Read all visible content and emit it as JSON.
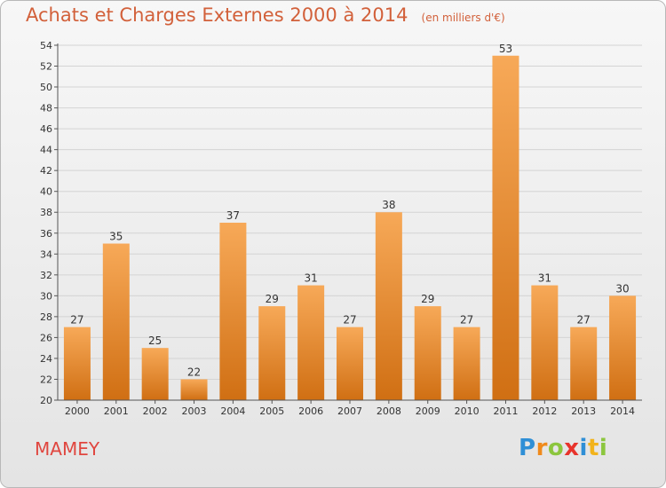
{
  "title": "Achats et Charges Externes 2000 à 2014",
  "subtitle": "(en milliers d'€)",
  "commune": "MAMEY",
  "logo": {
    "letters": [
      "P",
      "r",
      "o",
      "x",
      "i",
      "t",
      "i"
    ],
    "colors": [
      "#2f8fd6",
      "#f08a1c",
      "#8cc63e",
      "#e8342c",
      "#2f8fd6",
      "#f2b31b",
      "#8cc63e"
    ]
  },
  "colors": {
    "bar_light": "#f7a958",
    "bar_dark": "#d06f13",
    "title": "#d2603a",
    "commune": "#e0463f"
  },
  "chart_data": {
    "type": "bar",
    "categories": [
      "2000",
      "2001",
      "2002",
      "2003",
      "2004",
      "2005",
      "2006",
      "2007",
      "2008",
      "2009",
      "2010",
      "2011",
      "2012",
      "2013",
      "2014"
    ],
    "values": [
      27,
      35,
      25,
      22,
      37,
      29,
      31,
      27,
      38,
      29,
      27,
      53,
      31,
      27,
      30
    ],
    "ylim": [
      20,
      54
    ],
    "yticks": [
      20,
      22,
      24,
      26,
      28,
      30,
      32,
      34,
      36,
      38,
      40,
      42,
      44,
      46,
      48,
      50,
      52,
      54
    ],
    "grid": true,
    "legend": "none",
    "xlabel": "",
    "ylabel": ""
  }
}
